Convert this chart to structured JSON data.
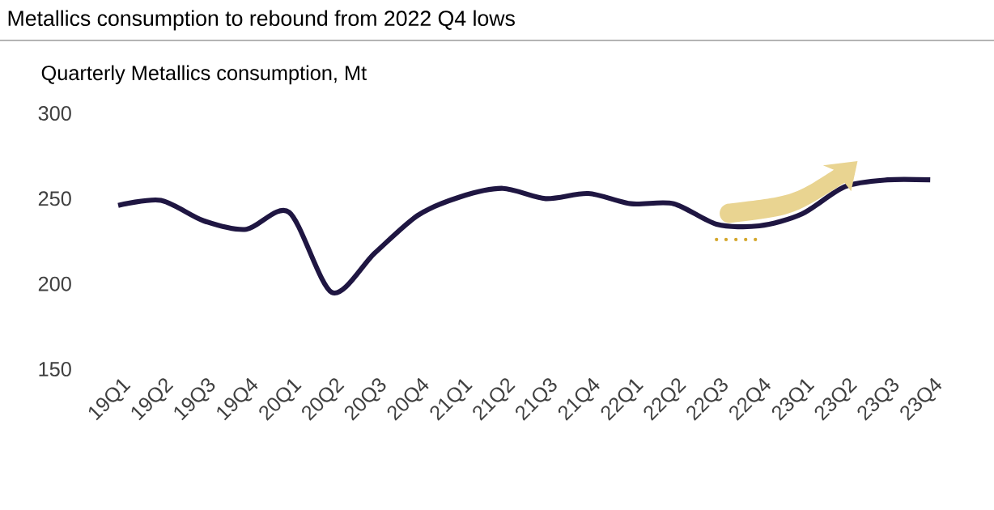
{
  "chart_data": {
    "type": "line",
    "title": "Metallics consumption to rebound from 2022 Q4 lows",
    "ylabel": "Quarterly Metallics consumption, Mt",
    "categories": [
      "19Q1",
      "19Q2",
      "19Q3",
      "19Q4",
      "20Q1",
      "20Q2",
      "20Q3",
      "20Q4",
      "21Q1",
      "21Q2",
      "21Q3",
      "21Q4",
      "22Q1",
      "22Q2",
      "22Q3",
      "22Q4",
      "23Q1",
      "23Q2",
      "23Q3",
      "23Q4"
    ],
    "series": [
      {
        "color": "#1f1642",
        "line_style": "solid",
        "values": [
          246,
          249,
          237,
          232,
          242,
          195,
          218,
          240,
          251,
          256,
          250,
          253,
          247,
          247,
          235,
          234,
          241,
          257,
          261,
          261
        ]
      },
      {
        "color": "#d4a72c",
        "line_style": "dotted",
        "values": [
          null,
          null,
          null,
          null,
          null,
          null,
          null,
          null,
          null,
          null,
          null,
          null,
          null,
          null,
          226,
          226,
          null,
          null,
          null,
          null
        ]
      }
    ],
    "ylim": [
      150,
      300
    ],
    "yticks": [
      150,
      200,
      250,
      300
    ],
    "marker": "none"
  }
}
